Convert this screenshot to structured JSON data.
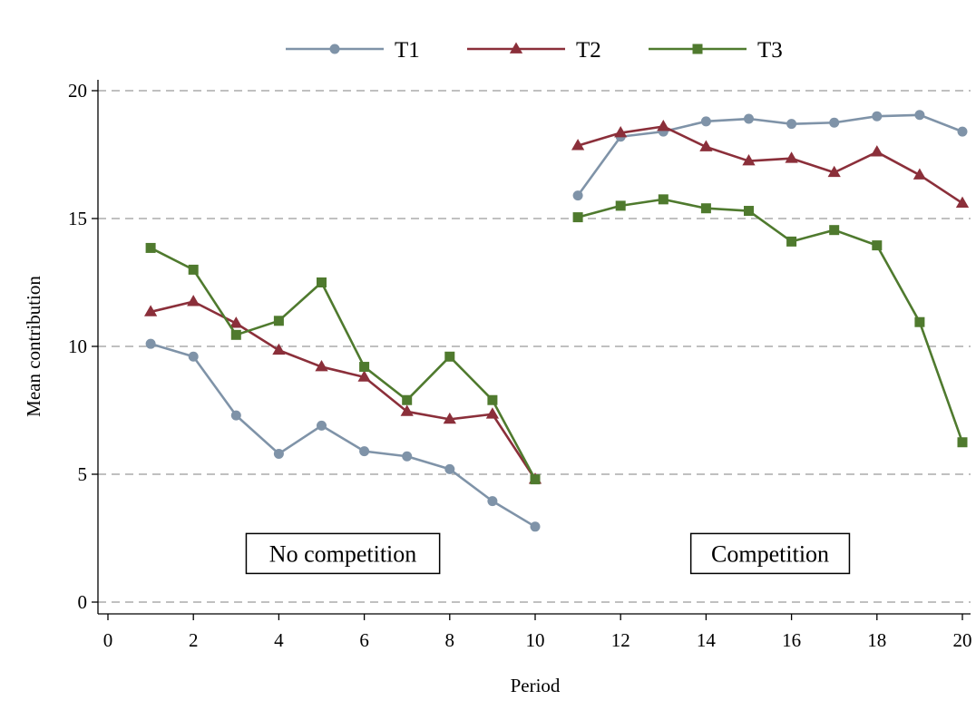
{
  "chart_data": {
    "type": "line",
    "title": "",
    "xlabel": "Period",
    "ylabel": "Mean contribution",
    "xlim": [
      0,
      20
    ],
    "ylim": [
      0,
      20
    ],
    "x_ticks": [
      0,
      2,
      4,
      6,
      8,
      10,
      12,
      14,
      16,
      18,
      20
    ],
    "y_ticks": [
      0,
      5,
      10,
      15,
      20
    ],
    "grid": "horizontal dashed",
    "legend_position": "top",
    "colors": {
      "T1": "#7f93a8",
      "T2": "#8b2f3a",
      "T3": "#4f7a2e"
    },
    "series": [
      {
        "name": "T1",
        "marker": "circle",
        "segments": [
          {
            "x": [
              1,
              2,
              3,
              4,
              5,
              6,
              7,
              8,
              9,
              10
            ],
            "y": [
              10.1,
              9.6,
              7.3,
              5.8,
              6.9,
              5.9,
              5.7,
              5.2,
              3.95,
              2.95
            ]
          },
          {
            "x": [
              11,
              12,
              13,
              14,
              15,
              16,
              17,
              18,
              19,
              20
            ],
            "y": [
              15.9,
              18.2,
              18.4,
              18.8,
              18.9,
              18.7,
              18.75,
              19.0,
              19.05,
              18.4
            ]
          }
        ]
      },
      {
        "name": "T2",
        "marker": "triangle",
        "segments": [
          {
            "x": [
              1,
              2,
              3,
              4,
              5,
              6,
              7,
              8,
              9,
              10
            ],
            "y": [
              11.35,
              11.75,
              10.9,
              9.85,
              9.2,
              8.8,
              7.45,
              7.15,
              7.35,
              4.8
            ]
          },
          {
            "x": [
              11,
              12,
              13,
              14,
              15,
              16,
              17,
              18,
              19,
              20
            ],
            "y": [
              17.85,
              18.35,
              18.6,
              17.8,
              17.25,
              17.35,
              16.8,
              17.6,
              16.7,
              15.6
            ]
          }
        ]
      },
      {
        "name": "T3",
        "marker": "square",
        "segments": [
          {
            "x": [
              1,
              2,
              3,
              4,
              5,
              6,
              7,
              8,
              9,
              10
            ],
            "y": [
              13.85,
              13.0,
              10.45,
              11.0,
              12.5,
              9.2,
              7.9,
              9.6,
              7.9,
              4.8
            ]
          },
          {
            "x": [
              11,
              12,
              13,
              14,
              15,
              16,
              17,
              18,
              19,
              20
            ],
            "y": [
              15.05,
              15.5,
              15.75,
              15.4,
              15.3,
              14.1,
              14.55,
              13.95,
              10.95,
              6.25
            ]
          }
        ]
      }
    ],
    "annotations": [
      {
        "text": "No competition",
        "x": 5.5,
        "y": 1.9
      },
      {
        "text": "Competition",
        "x": 15.5,
        "y": 1.9
      }
    ]
  }
}
